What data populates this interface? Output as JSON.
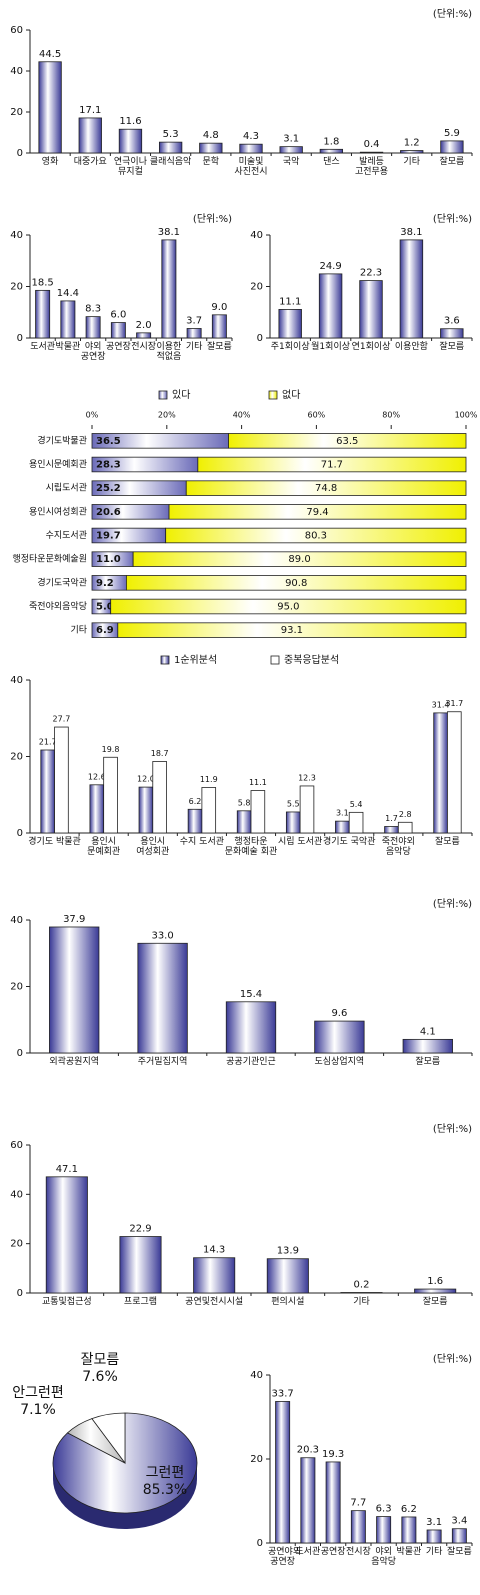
{
  "chart_data": [
    {
      "type": "bar",
      "annotation": "(단위:%)",
      "color": "#3a3a96",
      "categories": [
        "영화",
        "대중가요",
        "연극이나 뮤지컬",
        "클래식음악",
        "문학",
        "미술및 사진전시",
        "국악",
        "댄스",
        "발레등 고전무용",
        "기타",
        "잘모름"
      ],
      "values": [
        44.5,
        17.1,
        11.6,
        5.3,
        4.8,
        4.3,
        3.1,
        1.8,
        0.4,
        1.2,
        5.9
      ],
      "ylim": [
        0,
        60
      ],
      "yticks": [
        0,
        20,
        40,
        60
      ]
    },
    {
      "type": "bar",
      "annotation": "(단위:%)",
      "color": "#3a3a96",
      "categories": [
        "도서관",
        "박물관",
        "야외 공연장",
        "공연장",
        "전시장",
        "이용한 적없음",
        "기타",
        "잘모름"
      ],
      "values": [
        18.5,
        14.4,
        8.3,
        6.0,
        2.0,
        38.1,
        3.7,
        9.0
      ],
      "value_labels": [
        "18.5",
        "14.4",
        "8.3",
        "6.0",
        "2.0",
        "38.1",
        "3.7",
        "9.0"
      ],
      "ylim": [
        0,
        40
      ],
      "yticks": [
        0,
        20,
        40
      ]
    },
    {
      "type": "bar",
      "annotation": "(단위:%)",
      "color": "#3a3a96",
      "categories": [
        "주1회이상",
        "월1회이상",
        "연1회이상",
        "이용안함",
        "잘모름"
      ],
      "values": [
        11.1,
        24.9,
        22.3,
        38.1,
        3.6
      ],
      "ylim": [
        0,
        40
      ],
      "yticks": [
        0,
        20,
        40
      ]
    },
    {
      "type": "hbar",
      "categories": [
        "경기도박물관",
        "용인시문예회관",
        "시립도서관",
        "용인시여성회관",
        "수지도서관",
        "행정타운문화예술원",
        "경기도국악관",
        "죽전야외음악당",
        "기타"
      ],
      "series": [
        {
          "name": "있다",
          "color": "#6a6ab8",
          "values": [
            36.5,
            28.3,
            25.2,
            20.6,
            19.7,
            11.0,
            9.2,
            5.0,
            6.9
          ],
          "value_labels": [
            "36.5",
            "28.3",
            "25.2",
            "20.6",
            "19.7",
            "11.0",
            "9.2",
            "5.0",
            "6.9"
          ]
        },
        {
          "name": "없다",
          "color": "#f0f000",
          "values": [
            63.5,
            71.7,
            74.8,
            79.4,
            80.3,
            89.0,
            90.8,
            95.0,
            93.1
          ],
          "value_labels": [
            "63.5",
            "71.7",
            "74.8",
            "79.4",
            "80.3",
            "89.0",
            "90.8",
            "95.0",
            "93.1"
          ]
        }
      ],
      "xlim": [
        0,
        100
      ],
      "xticks": [
        {
          "value": 0,
          "label": "0%"
        },
        {
          "value": 20,
          "label": "20%"
        },
        {
          "value": 40,
          "label": "40%"
        },
        {
          "value": 60,
          "label": "60%"
        },
        {
          "value": 80,
          "label": "80%"
        },
        {
          "value": 100,
          "label": "100%"
        }
      ]
    },
    {
      "type": "bar",
      "categories": [
        "경기도 박물관",
        "용인시 문예회관",
        "용인시 여성회관",
        "수지 도서관",
        "행정타운 문화예술 회관",
        "시립 도서관",
        "경기도 국악관",
        "죽전야외 음악당",
        "잘모름"
      ],
      "series": [
        {
          "name": "1순위분석",
          "color": "#3a3a96",
          "values": [
            21.7,
            12.6,
            12.0,
            6.2,
            5.8,
            5.5,
            3.1,
            1.7,
            31.4
          ],
          "value_labels": [
            "21.7",
            "12.6",
            "12.0",
            "6.2",
            "5.8",
            "5.5",
            "3.1",
            "1.7",
            "31.4"
          ]
        },
        {
          "name": "중복응답분석",
          "color": "#ffffff",
          "values": [
            27.7,
            19.8,
            18.7,
            11.9,
            11.1,
            12.3,
            5.4,
            2.8,
            31.7
          ]
        }
      ],
      "ylim": [
        0,
        40
      ],
      "yticks": [
        0,
        20,
        40
      ]
    },
    {
      "type": "bar",
      "annotation": "(단위:%)",
      "color": "#3a3a96",
      "categories": [
        "외곽공원지역",
        "주거밀집지역",
        "공공기관인근",
        "도심상업지역",
        "잘모름"
      ],
      "values": [
        37.9,
        33.0,
        15.4,
        9.6,
        4.1
      ],
      "value_labels": [
        "37.9",
        "33.0",
        "15.4",
        "9.6",
        "4.1"
      ],
      "ylim": [
        0,
        40
      ],
      "yticks": [
        0,
        20,
        40
      ]
    },
    {
      "type": "bar",
      "annotation": "(단위:%)",
      "color": "#3a3a96",
      "categories": [
        "교통및접근성",
        "프로그램",
        "공연및전시시설",
        "편의시설",
        "기타",
        "잘모름"
      ],
      "values": [
        47.1,
        22.9,
        14.3,
        13.9,
        0.2,
        1.6
      ],
      "ylim": [
        0,
        60
      ],
      "yticks": [
        0,
        20,
        40,
        60
      ]
    },
    {
      "type": "pie",
      "categories": [
        "그런편",
        "안그런편",
        "잘모름"
      ],
      "values": [
        85.3,
        7.1,
        7.6
      ],
      "value_labels": [
        "85.3%",
        "7.1%",
        "7.6%"
      ],
      "colors": [
        "#3a3a96",
        "#b4b4b4",
        "#ffffff"
      ]
    },
    {
      "type": "bar",
      "annotation": "(단위:%)",
      "color": "#3a3a96",
      "categories": [
        "공연야외 공연장",
        "도서관",
        "공연장",
        "전시장",
        "야외 음악당",
        "박물관",
        "기타",
        "잘모름"
      ],
      "values": [
        33.7,
        20.3,
        19.3,
        7.7,
        6.3,
        6.2,
        3.1,
        3.4
      ],
      "ylim": [
        0,
        40
      ],
      "yticks": [
        0,
        20,
        40
      ]
    }
  ]
}
